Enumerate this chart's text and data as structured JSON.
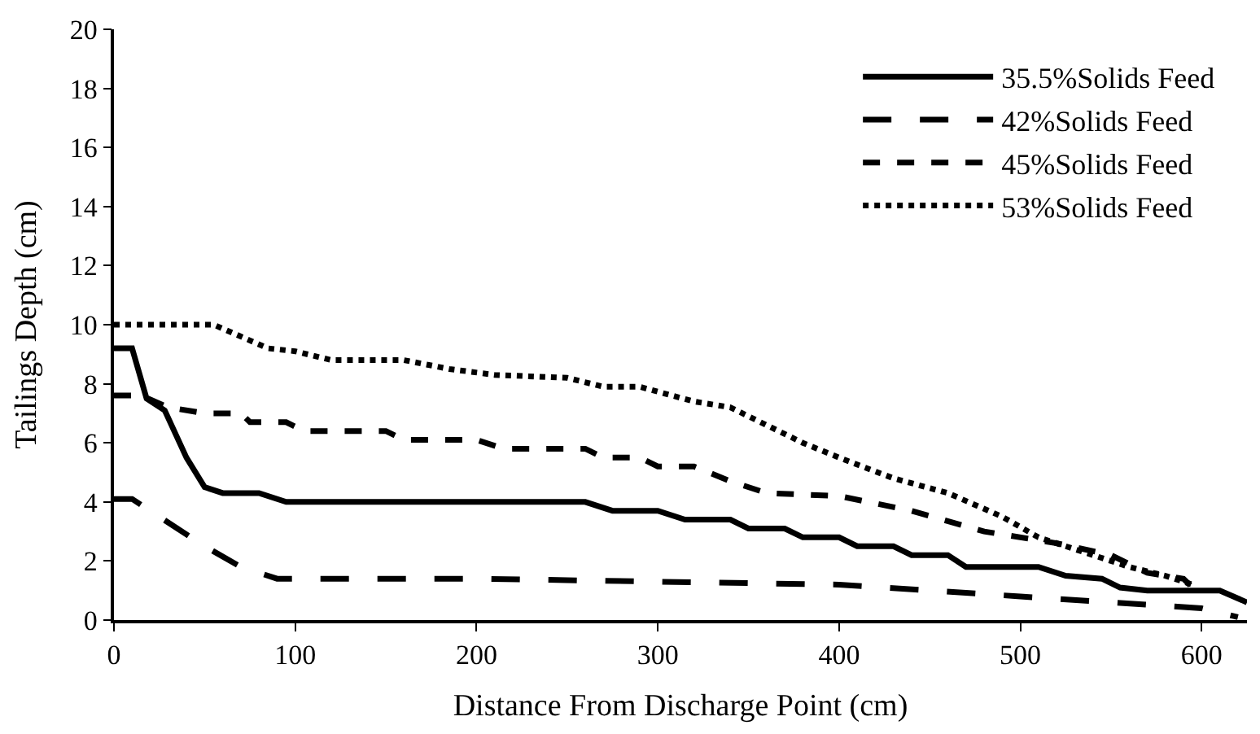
{
  "chart_data": {
    "type": "line",
    "xlabel": "Distance From Discharge Point (cm)",
    "ylabel": "Tailings Depth (cm)",
    "xlim": [
      0,
      625
    ],
    "xticks": [
      0,
      100,
      200,
      300,
      400,
      500,
      600
    ],
    "ylim": [
      0,
      20
    ],
    "yticks": [
      0,
      2,
      4,
      6,
      8,
      10,
      12,
      14,
      16,
      18,
      20
    ],
    "grid": false,
    "legend": "top right",
    "marker": "none",
    "series": [
      {
        "name": "35.5%Solids Feed",
        "color": "#000000",
        "line_style": "solid",
        "x": [
          0,
          10,
          18,
          28,
          40,
          50,
          60,
          80,
          95,
          260,
          275,
          300,
          315,
          340,
          350,
          370,
          380,
          400,
          410,
          430,
          440,
          460,
          470,
          510,
          525,
          545,
          555,
          570,
          610,
          625
        ],
        "values": [
          9.2,
          9.2,
          7.5,
          7.1,
          5.5,
          4.5,
          4.3,
          4.3,
          4.0,
          4.0,
          3.7,
          3.7,
          3.4,
          3.4,
          3.1,
          3.1,
          2.8,
          2.8,
          2.5,
          2.5,
          2.2,
          2.2,
          1.8,
          1.8,
          1.5,
          1.4,
          1.1,
          1.0,
          1.0,
          0.6
        ]
      },
      {
        "name": "42%Solids Feed",
        "color": "#000000",
        "line_style": "longdash",
        "x": [
          0,
          10,
          25,
          50,
          70,
          90,
          200,
          300,
          400,
          500,
          600,
          620
        ],
        "values": [
          4.1,
          4.1,
          3.5,
          2.5,
          1.8,
          1.4,
          1.4,
          1.3,
          1.2,
          0.8,
          0.4,
          0.1
        ]
      },
      {
        "name": "45%Solids Feed",
        "color": "#000000",
        "line_style": "dashed",
        "x": [
          0,
          15,
          30,
          50,
          70,
          75,
          95,
          105,
          150,
          160,
          200,
          215,
          260,
          270,
          290,
          300,
          320,
          340,
          360,
          400,
          440,
          480,
          520,
          550,
          570,
          590,
          600
        ],
        "values": [
          7.6,
          7.6,
          7.2,
          7.0,
          7.0,
          6.7,
          6.7,
          6.4,
          6.4,
          6.1,
          6.1,
          5.8,
          5.8,
          5.5,
          5.5,
          5.2,
          5.2,
          4.7,
          4.3,
          4.2,
          3.7,
          3.0,
          2.6,
          2.2,
          1.6,
          1.4,
          0.8
        ]
      },
      {
        "name": "53%Solids Feed",
        "color": "#000000",
        "line_style": "dotted",
        "x": [
          0,
          55,
          70,
          85,
          100,
          120,
          160,
          185,
          210,
          250,
          270,
          290,
          320,
          340,
          360,
          380,
          400,
          430,
          460,
          490,
          510,
          540,
          560,
          580,
          595
        ],
        "values": [
          10.0,
          10.0,
          9.6,
          9.2,
          9.1,
          8.8,
          8.8,
          8.5,
          8.3,
          8.2,
          7.9,
          7.9,
          7.4,
          7.2,
          6.6,
          6.0,
          5.5,
          4.8,
          4.3,
          3.5,
          2.8,
          2.2,
          1.8,
          1.5,
          1.2
        ]
      }
    ]
  }
}
